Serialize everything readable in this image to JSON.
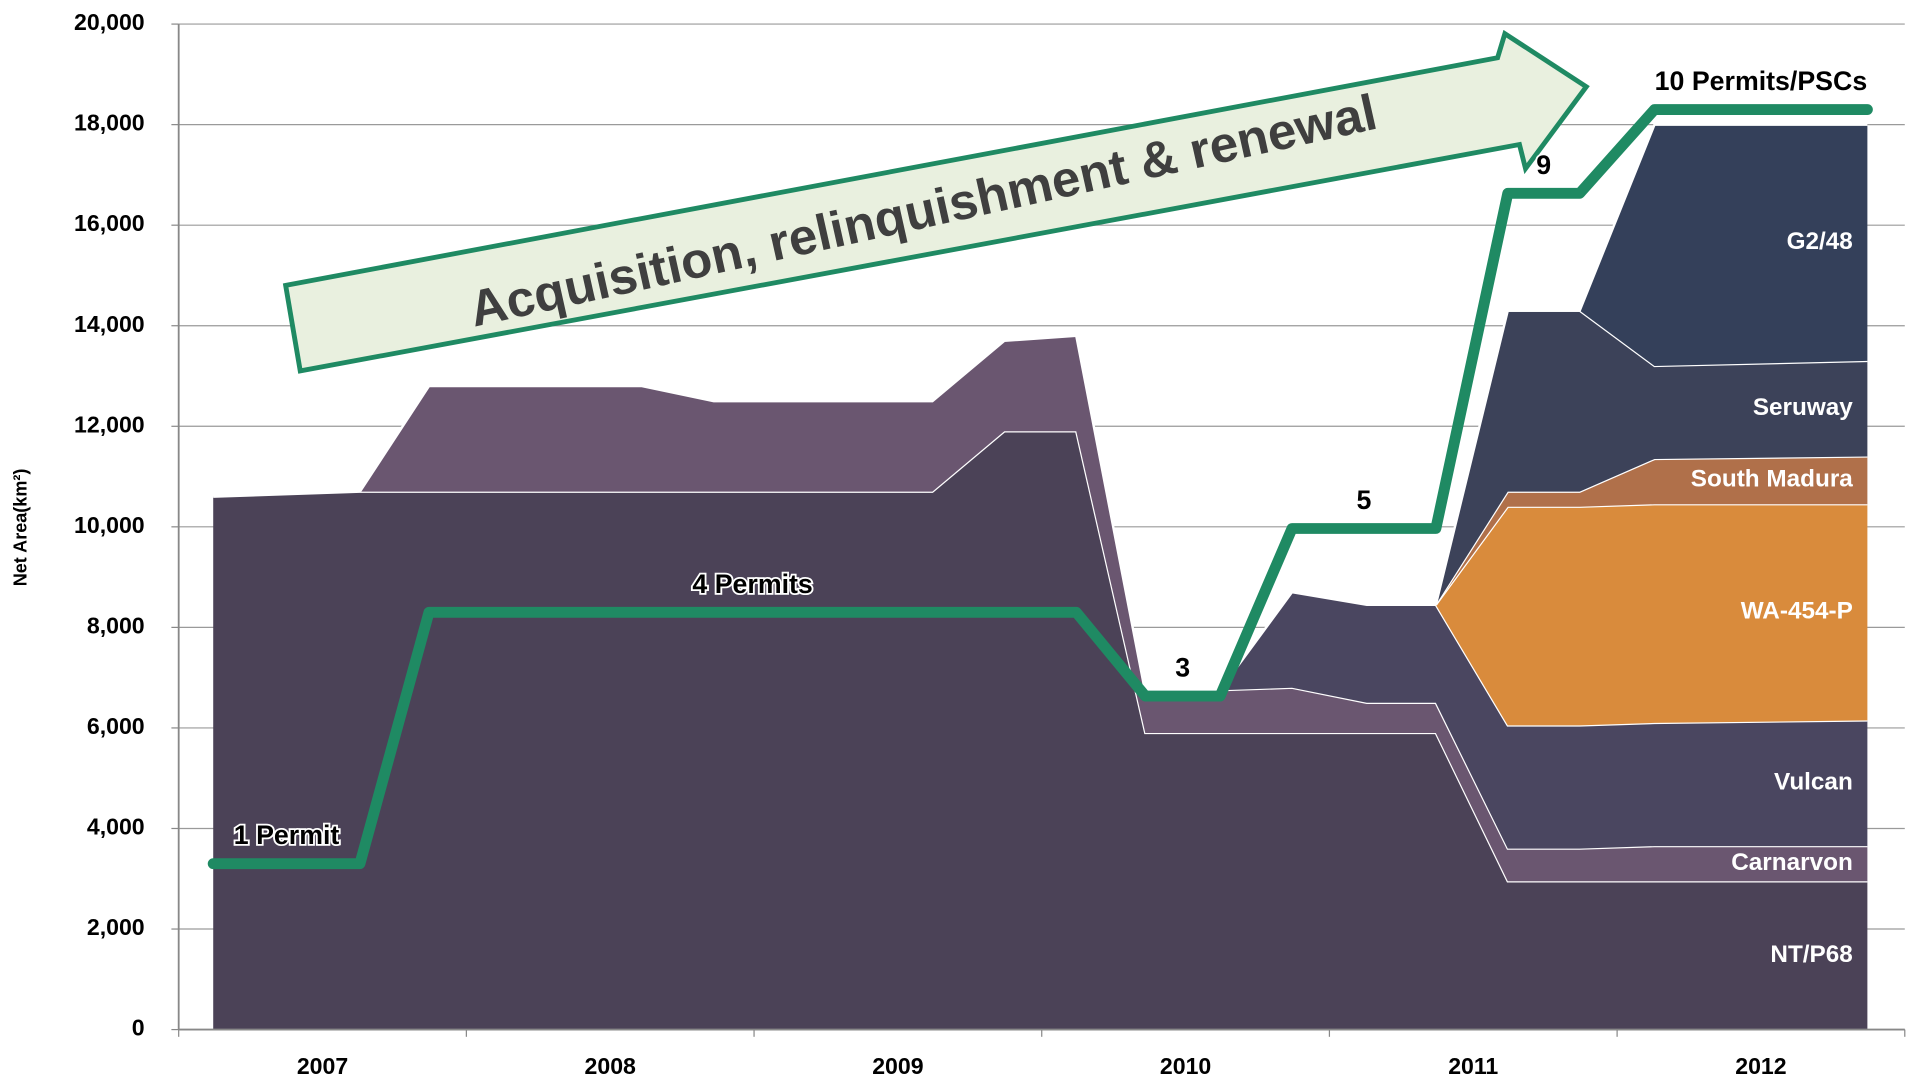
{
  "chart_data": {
    "type": "area",
    "stacked": true,
    "annotation": "Acquisition, relinquishment & renewal",
    "ylabel": "Net Area(km²)",
    "categories": [
      "2007",
      "2008",
      "2009",
      "2010",
      "2011",
      "2012"
    ],
    "xlim": [
      2007,
      2013
    ],
    "ylim": [
      0,
      20000
    ],
    "yticks": [
      0,
      {
        "value": 2000,
        "label": "2,000"
      },
      {
        "value": 4000,
        "label": "4,000"
      },
      {
        "value": 6000,
        "label": "6,000"
      },
      {
        "value": 8000,
        "label": "8,000"
      },
      {
        "value": 10000,
        "label": "10,000"
      },
      {
        "value": 12000,
        "label": "12,000"
      },
      {
        "value": 14000,
        "label": "14,000"
      },
      {
        "value": 16000,
        "label": "16,000"
      },
      {
        "value": 18000,
        "label": "18,000"
      },
      {
        "value": 20000,
        "label": "20,000"
      }
    ],
    "grid": true,
    "x": [
      2007.12,
      2007.63,
      2007.87,
      2008.61,
      2008.86,
      2009.62,
      2009.87,
      2010.12,
      2010.36,
      2010.62,
      2010.87,
      2011.13,
      2011.37,
      2011.62,
      2011.87,
      2012.13,
      2012.87
    ],
    "series": [
      {
        "name": "NT/P68",
        "color": "#4b4257",
        "values": [
          10600,
          10700,
          10700,
          10700,
          10700,
          10700,
          11900,
          11900,
          5900,
          5900,
          5900,
          5900,
          5900,
          2950,
          2950,
          2950,
          2950
        ]
      },
      {
        "name": "Carnarvon",
        "color": "#6a5670",
        "values": [
          null,
          0,
          2100,
          2100,
          1800,
          1800,
          1800,
          1900,
          800,
          850,
          900,
          600,
          600,
          650,
          650,
          700,
          700
        ]
      },
      {
        "name": "Vulcan",
        "color": "#4a4660",
        "values": [
          null,
          null,
          null,
          null,
          null,
          null,
          null,
          null,
          null,
          0,
          1900,
          1950,
          1950,
          2450,
          2450,
          2450,
          2500
        ]
      },
      {
        "name": "WA-454-P",
        "color": "#d98b3c",
        "values": [
          null,
          null,
          null,
          null,
          null,
          null,
          null,
          null,
          null,
          null,
          null,
          null,
          0,
          4350,
          4350,
          4350,
          4300
        ]
      },
      {
        "name": "South Madura",
        "color": "#b0704a",
        "values": [
          null,
          null,
          null,
          null,
          null,
          null,
          null,
          null,
          null,
          null,
          null,
          null,
          0,
          300,
          300,
          900,
          950
        ]
      },
      {
        "name": "Seruway",
        "color": "#3c4259",
        "values": [
          null,
          null,
          null,
          null,
          null,
          null,
          null,
          null,
          null,
          null,
          null,
          null,
          0,
          3600,
          3600,
          1850,
          1900
        ]
      },
      {
        "name": "G2/48",
        "color": "#34405a",
        "values": [
          null,
          null,
          null,
          null,
          null,
          null,
          null,
          null,
          null,
          null,
          null,
          null,
          null,
          0,
          0,
          4800,
          4700
        ]
      }
    ],
    "line": {
      "type": "line",
      "axis": "y2",
      "color": "#1f8a63",
      "x": [
        2007.12,
        2007.63,
        2007.87,
        2010.12,
        2010.36,
        2010.62,
        2010.87,
        2011.37,
        2011.62,
        2011.87,
        2012.13,
        2012.87
      ],
      "values": [
        1,
        1,
        4,
        4,
        3,
        3,
        5,
        5,
        9,
        9,
        10,
        10
      ],
      "value_labels": [
        "1 Permit",
        null,
        "4 Permits",
        null,
        "3",
        null,
        "5",
        null,
        "9",
        null,
        "10 Permits/PSCs",
        null
      ]
    },
    "y2lim": [
      -0.98,
      11.02
    ]
  }
}
